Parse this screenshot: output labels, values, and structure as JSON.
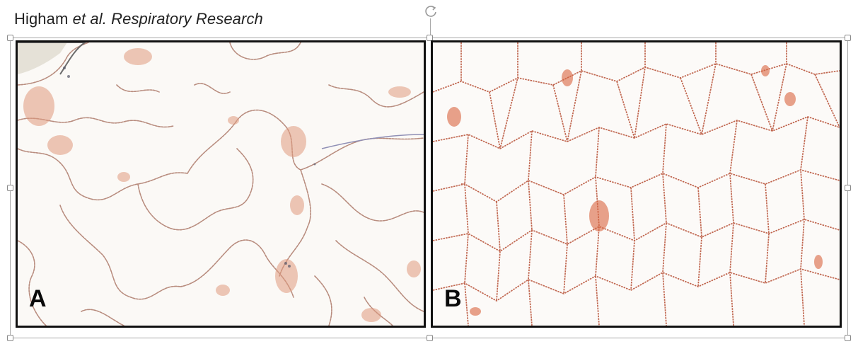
{
  "caption": {
    "authors_prefix": "Higham ",
    "authors_italic": "et al.",
    "journal": " Respiratory Research"
  },
  "panels": [
    {
      "label": "A"
    },
    {
      "label": "B"
    }
  ]
}
